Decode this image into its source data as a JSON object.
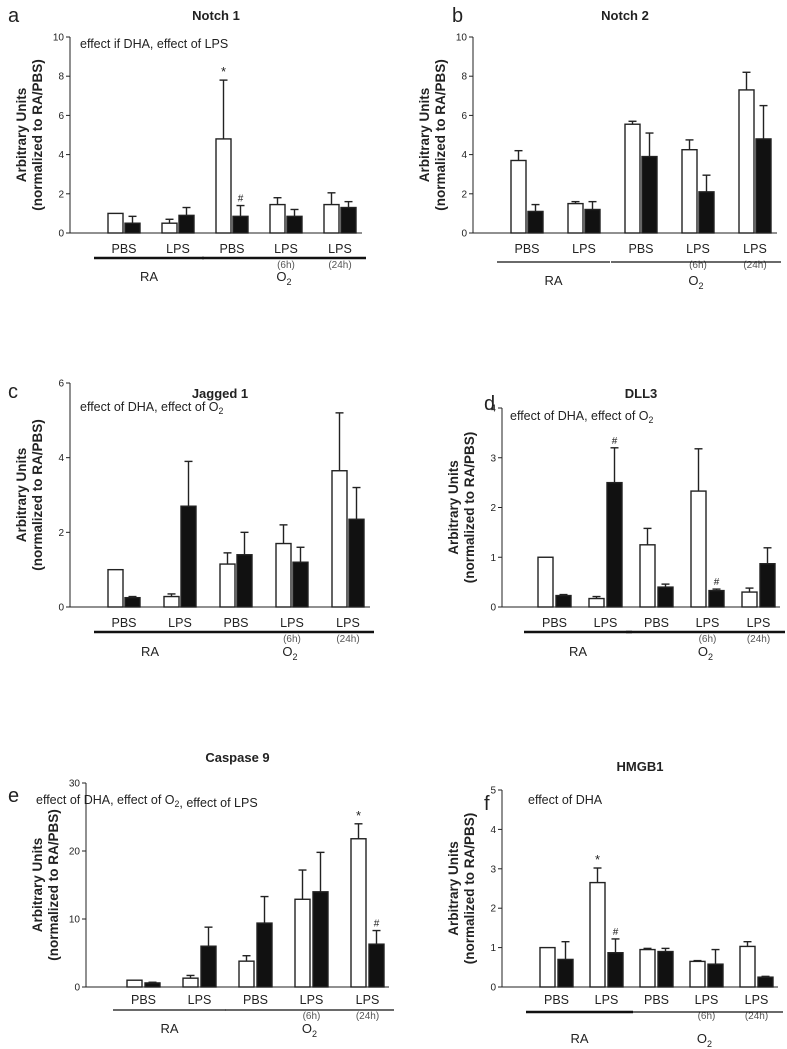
{
  "figure": {
    "panels": [
      {
        "letter": "a",
        "chart_data": {
          "type": "bar",
          "title": "Notch 1",
          "annotation": "effect if DHA, effect of LPS",
          "ylabel_line1": "Arbitrary Units",
          "ylabel_line2": "(normalized to RA/PBS)",
          "ylim": [
            0,
            10
          ],
          "yticks": [
            0,
            2,
            4,
            6,
            8,
            10
          ],
          "categories": [
            "PBS",
            "LPS",
            "PBS",
            "LPS",
            "LPS"
          ],
          "sublabels": [
            "",
            "",
            "",
            "(6h)",
            "(24h)"
          ],
          "series": [
            {
              "fill": "white",
              "values": [
                1.0,
                0.5,
                4.8,
                1.45,
                1.45
              ],
              "errors": [
                0,
                0.2,
                3.0,
                0.35,
                0.6
              ]
            },
            {
              "fill": "black",
              "values": [
                0.5,
                0.9,
                0.85,
                0.85,
                1.3
              ],
              "errors": [
                0.35,
                0.4,
                0.55,
                0.35,
                0.3
              ]
            }
          ],
          "markers": [
            {
              "group": 2,
              "bar": 0,
              "symbol": "*"
            },
            {
              "group": 2,
              "bar": 1,
              "symbol": "#"
            }
          ],
          "groups": [
            {
              "label": "RA",
              "from": 0,
              "to": 1,
              "bold": true
            },
            {
              "label": "O",
              "sub": "2",
              "from": 2,
              "to": 4,
              "bold": true
            }
          ]
        }
      },
      {
        "letter": "b",
        "chart_data": {
          "type": "bar",
          "title": "Notch 2",
          "annotation": "",
          "ylabel_line1": "Arbitrary Units",
          "ylabel_line2": "(normalized to RA/PBS)",
          "ylim": [
            0,
            10
          ],
          "yticks": [
            0,
            2,
            4,
            6,
            8,
            10
          ],
          "categories": [
            "PBS",
            "LPS",
            "PBS",
            "LPS",
            "LPS"
          ],
          "sublabels": [
            "",
            "",
            "",
            "(6h)",
            "(24h)"
          ],
          "series": [
            {
              "fill": "white",
              "values": [
                3.7,
                1.5,
                5.55,
                4.25,
                7.3
              ],
              "errors": [
                0.5,
                0.1,
                0.15,
                0.5,
                0.9
              ]
            },
            {
              "fill": "black",
              "values": [
                1.1,
                1.2,
                3.9,
                2.1,
                4.8
              ],
              "errors": [
                0.35,
                0.4,
                1.2,
                0.85,
                1.7
              ]
            }
          ],
          "markers": [],
          "groups": [
            {
              "label": "RA",
              "from": 0,
              "to": 1,
              "bold": false
            },
            {
              "label": "O",
              "sub": "2",
              "from": 2,
              "to": 4,
              "bold": false
            }
          ]
        }
      },
      {
        "letter": "c",
        "chart_data": {
          "type": "bar",
          "title": "Jagged 1",
          "annotation": "effect of DHA, effect of O2",
          "ylabel_line1": "Arbitrary Units",
          "ylabel_line2": "(normalized to RA/PBS)",
          "ylim": [
            0,
            6
          ],
          "yticks": [
            0,
            2,
            4,
            6
          ],
          "categories": [
            "PBS",
            "LPS",
            "PBS",
            "LPS",
            "LPS"
          ],
          "sublabels": [
            "",
            "",
            "",
            "(6h)",
            "(24h)"
          ],
          "series": [
            {
              "fill": "white",
              "values": [
                1.0,
                0.28,
                1.15,
                1.7,
                3.65
              ],
              "errors": [
                0,
                0.07,
                0.3,
                0.5,
                1.55
              ]
            },
            {
              "fill": "black",
              "values": [
                0.25,
                2.7,
                1.4,
                1.2,
                2.35
              ],
              "errors": [
                0.03,
                1.2,
                0.6,
                0.4,
                0.85
              ]
            }
          ],
          "markers": [],
          "groups": [
            {
              "label": "RA",
              "from": 0,
              "to": 1,
              "bold": true
            },
            {
              "label": "O",
              "sub": "2",
              "from": 2,
              "to": 4,
              "bold": true
            }
          ]
        }
      },
      {
        "letter": "d",
        "chart_data": {
          "type": "bar",
          "title": "DLL3",
          "annotation": "effect of DHA, effect of O2",
          "ylabel_line1": "Arbitrary Units",
          "ylabel_line2": "(normalized to RA/PBS)",
          "ylim": [
            0,
            4
          ],
          "yticks": [
            0,
            1,
            2,
            3,
            4
          ],
          "categories": [
            "PBS",
            "LPS",
            "PBS",
            "LPS",
            "LPS"
          ],
          "sublabels": [
            "",
            "",
            "",
            "(6h)",
            "(24h)"
          ],
          "series": [
            {
              "fill": "white",
              "values": [
                1.0,
                0.17,
                1.25,
                2.33,
                0.3
              ],
              "errors": [
                0,
                0.04,
                0.33,
                0.85,
                0.08
              ]
            },
            {
              "fill": "black",
              "values": [
                0.23,
                2.5,
                0.4,
                0.33,
                0.87
              ],
              "errors": [
                0.02,
                0.7,
                0.06,
                0.03,
                0.32
              ]
            }
          ],
          "markers": [
            {
              "group": 1,
              "bar": 1,
              "symbol": "#"
            },
            {
              "group": 3,
              "bar": 1,
              "symbol": "#"
            }
          ],
          "groups": [
            {
              "label": "RA",
              "from": 0,
              "to": 1,
              "bold": true
            },
            {
              "label": "O",
              "sub": "2",
              "from": 2,
              "to": 4,
              "bold": true
            }
          ]
        }
      },
      {
        "letter": "e",
        "chart_data": {
          "type": "bar",
          "title": "Caspase 9",
          "annotation": "effect of DHA, effect of O2, effect of LPS",
          "ylabel_line1": "Arbitrary Units",
          "ylabel_line2": "(normalized to RA/PBS)",
          "ylim": [
            0,
            30
          ],
          "yticks": [
            0,
            10,
            20,
            30
          ],
          "categories": [
            "PBS",
            "LPS",
            "PBS",
            "LPS",
            "LPS"
          ],
          "sublabels": [
            "",
            "",
            "",
            "(6h)",
            "(24h)"
          ],
          "series": [
            {
              "fill": "white",
              "values": [
                1.0,
                1.3,
                3.8,
                12.9,
                21.8
              ],
              "errors": [
                0,
                0.4,
                0.8,
                4.3,
                2.2
              ]
            },
            {
              "fill": "black",
              "values": [
                0.6,
                6.0,
                9.4,
                14.0,
                6.3
              ],
              "errors": [
                0.1,
                2.8,
                3.9,
                5.8,
                2.0
              ]
            }
          ],
          "markers": [
            {
              "group": 4,
              "bar": 0,
              "symbol": "*"
            },
            {
              "group": 4,
              "bar": 1,
              "symbol": "#"
            }
          ],
          "groups": [
            {
              "label": "RA",
              "from": 0,
              "to": 1,
              "bold": false
            },
            {
              "label": "O",
              "sub": "2",
              "from": 2,
              "to": 4,
              "bold": false
            }
          ]
        }
      },
      {
        "letter": "f",
        "chart_data": {
          "type": "bar",
          "title": "HMGB1",
          "annotation": "effect of DHA",
          "ylabel_line1": "Arbitrary Units",
          "ylabel_line2": "(normalized to RA/PBS)",
          "ylim": [
            0,
            5
          ],
          "yticks": [
            0,
            1,
            2,
            3,
            4,
            5
          ],
          "categories": [
            "PBS",
            "LPS",
            "PBS",
            "LPS",
            "LPS"
          ],
          "sublabels": [
            "",
            "",
            "",
            "(6h)",
            "(24h)"
          ],
          "series": [
            {
              "fill": "white",
              "values": [
                1.0,
                2.65,
                0.95,
                0.65,
                1.03
              ],
              "errors": [
                0,
                0.37,
                0.03,
                0.02,
                0.12
              ]
            },
            {
              "fill": "black",
              "values": [
                0.7,
                0.87,
                0.9,
                0.58,
                0.25
              ],
              "errors": [
                0.45,
                0.35,
                0.08,
                0.37,
                0.02
              ]
            }
          ],
          "markers": [
            {
              "group": 1,
              "bar": 0,
              "symbol": "*"
            },
            {
              "group": 1,
              "bar": 1,
              "symbol": "#"
            }
          ],
          "groups": [
            {
              "label": "RA",
              "from": 0,
              "to": 1,
              "bold": true
            },
            {
              "label": "O",
              "sub": "2",
              "from": 2,
              "to": 4,
              "bold": false
            }
          ]
        }
      }
    ]
  }
}
